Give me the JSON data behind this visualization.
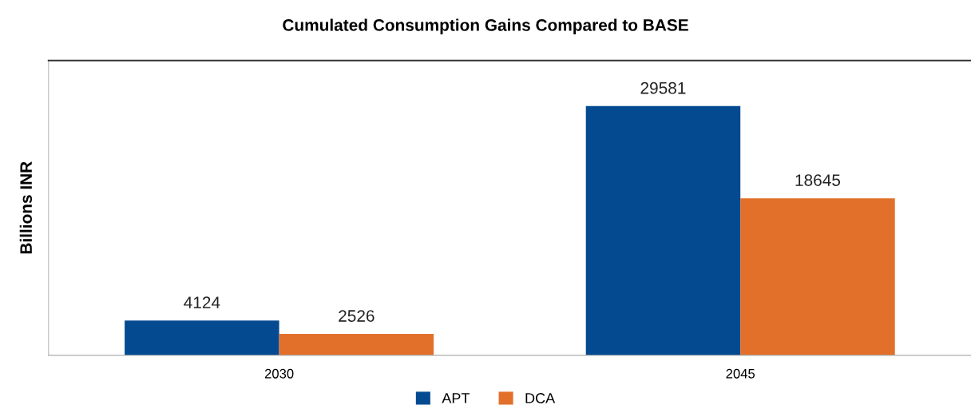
{
  "chart_data": {
    "type": "bar",
    "title": "Cumulated Consumption Gains Compared to BASE",
    "ylabel": "Billions INR",
    "categories": [
      "2030",
      "2045"
    ],
    "series": [
      {
        "name": "APT",
        "color": "#034a91",
        "values": [
          4124,
          29581
        ]
      },
      {
        "name": "DCA",
        "color": "#e2702a",
        "values": [
          2526,
          18645
        ]
      }
    ],
    "ylim": [
      0,
      35000
    ],
    "tick_labels": "x",
    "data_labels": true,
    "legend": "bottom"
  }
}
